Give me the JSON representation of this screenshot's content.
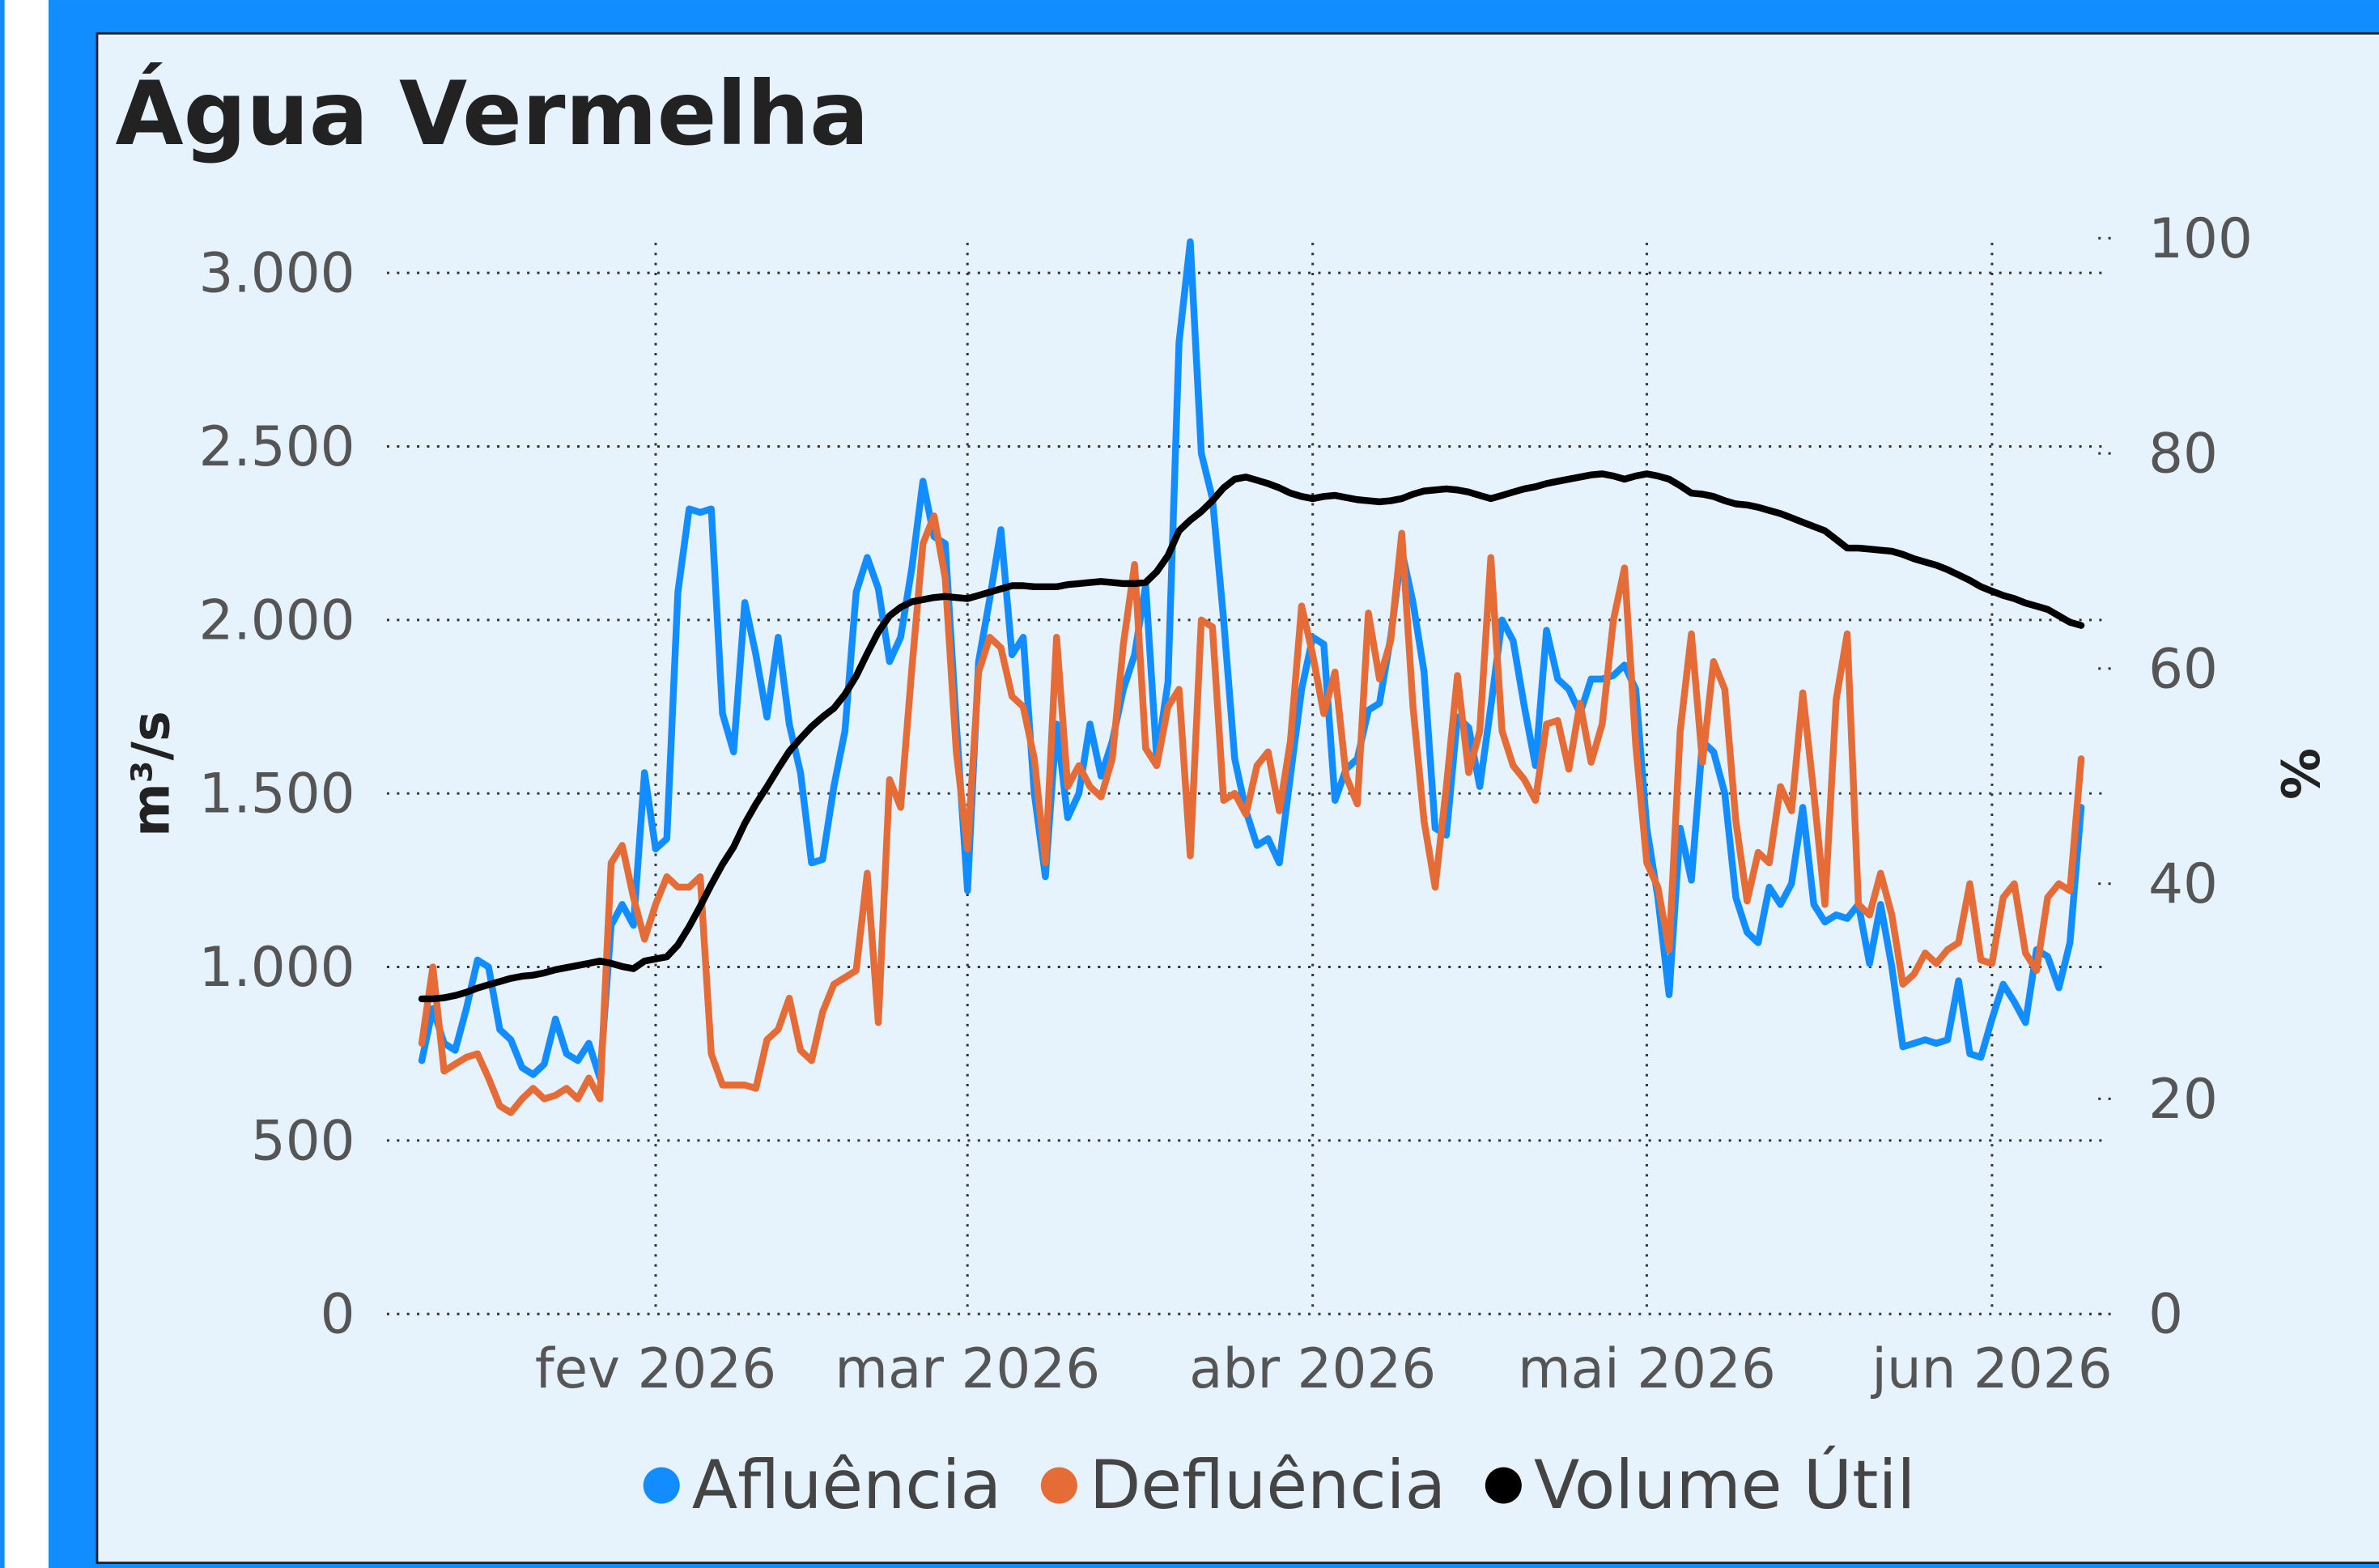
{
  "chart_data": {
    "type": "line",
    "title": "Água Vermelha",
    "y_label": "m³/s",
    "y2_label": "%",
    "categories": [
      null,
      null,
      null,
      null,
      null,
      null,
      null,
      null,
      null,
      null,
      null,
      null,
      null,
      null,
      null,
      null,
      null,
      null,
      null,
      null,
      null,
      "fev 2026",
      null,
      null,
      null,
      null,
      null,
      null,
      null,
      null,
      null,
      null,
      null,
      null,
      null,
      null,
      null,
      null,
      null,
      null,
      null,
      null,
      null,
      null,
      null,
      null,
      null,
      null,
      null,
      "mar 2026",
      null,
      null,
      null,
      null,
      null,
      null,
      null,
      null,
      null,
      null,
      null,
      null,
      null,
      null,
      null,
      null,
      null,
      null,
      null,
      null,
      null,
      null,
      null,
      null,
      null,
      null,
      null,
      null,
      null,
      null,
      "abr 2026",
      null,
      null,
      null,
      null,
      null,
      null,
      null,
      null,
      null,
      null,
      null,
      null,
      null,
      null,
      null,
      null,
      null,
      null,
      null,
      null,
      null,
      null,
      null,
      null,
      null,
      null,
      null,
      null,
      null,
      "mai 2026",
      null,
      null,
      null,
      null,
      null,
      null,
      null,
      null,
      null,
      null,
      null,
      null,
      null,
      null,
      null,
      null,
      null,
      null,
      null,
      null,
      null,
      null,
      null,
      null,
      null,
      null,
      null,
      null,
      null,
      null,
      "jun 2026",
      null,
      null,
      null,
      null,
      null,
      null,
      null,
      null
    ],
    "ylim": [
      0,
      3100
    ],
    "yticks": [
      0,
      500,
      {
        "value": 1000,
        "label": "1.000"
      },
      {
        "value": 1500,
        "label": "1.500"
      },
      {
        "value": 2000,
        "label": "2.000"
      },
      {
        "value": 2500,
        "label": "2.500"
      },
      {
        "value": 3000,
        "label": "3.000"
      }
    ],
    "y2lim": [
      0,
      100
    ],
    "y2ticks": [
      0,
      20,
      40,
      60,
      80,
      100
    ],
    "grid": true,
    "legend": "bottom",
    "series": [
      {
        "name": "Afluência",
        "color": "#118DFF",
        "values": [
          730,
          880,
          780,
          760,
          880,
          1020,
          1000,
          820,
          790,
          710,
          690,
          720,
          850,
          750,
          730,
          780,
          680,
          1120,
          1180,
          1120,
          1560,
          1340,
          1370,
          2080,
          2320,
          2310,
          2320,
          1730,
          1620,
          2050,
          1900,
          1720,
          1950,
          1700,
          1560,
          1300,
          1310,
          1520,
          1680,
          2080,
          2180,
          2090,
          1880,
          1950,
          2150,
          2400,
          2240,
          2220,
          1700,
          1220,
          1880,
          2060,
          2260,
          1900,
          1950,
          1500,
          1260,
          1700,
          1430,
          1500,
          1700,
          1550,
          1650,
          1800,
          1900,
          2100,
          1600,
          1820,
          2800,
          3090,
          2480,
          2350,
          2000,
          1600,
          1450,
          1350,
          1370,
          1300,
          1550,
          1800,
          1950,
          1930,
          1480,
          1570,
          1600,
          1740,
          1760,
          1950,
          2200,
          2050,
          1850,
          1400,
          1380,
          1720,
          1690,
          1520,
          1750,
          2000,
          1940,
          1750,
          1580,
          1970,
          1830,
          1800,
          1730,
          1830,
          1830,
          1840,
          1870,
          1800,
          1400,
          1200,
          920,
          1400,
          1250,
          1650,
          1620,
          1500,
          1200,
          1100,
          1070,
          1230,
          1180,
          1240,
          1460,
          1180,
          1130,
          1150,
          1140,
          1180,
          1010,
          1180,
          1000,
          770,
          780,
          790,
          780,
          790,
          960,
          750,
          740,
          850,
          950,
          900,
          840,
          1050,
          1030,
          940,
          1070,
          1460
        ]
      },
      {
        "name": "Defluência",
        "color": "#E66C37",
        "values": [
          780,
          1000,
          700,
          720,
          740,
          750,
          680,
          600,
          580,
          620,
          650,
          620,
          630,
          650,
          620,
          680,
          620,
          1300,
          1350,
          1200,
          1080,
          1180,
          1260,
          1230,
          1230,
          1260,
          750,
          660,
          660,
          660,
          650,
          790,
          820,
          910,
          760,
          730,
          870,
          950,
          970,
          990,
          1270,
          840,
          1540,
          1460,
          1860,
          2220,
          2300,
          2120,
          1620,
          1340,
          1850,
          1950,
          1920,
          1780,
          1750,
          1600,
          1300,
          1950,
          1520,
          1580,
          1520,
          1490,
          1600,
          1930,
          2160,
          1630,
          1580,
          1750,
          1800,
          1320,
          2000,
          1980,
          1480,
          1500,
          1440,
          1580,
          1620,
          1450,
          1650,
          2040,
          1900,
          1730,
          1850,
          1550,
          1470,
          2020,
          1830,
          1940,
          2250,
          1750,
          1420,
          1230,
          1520,
          1840,
          1560,
          1680,
          2180,
          1680,
          1580,
          1540,
          1480,
          1700,
          1710,
          1570,
          1760,
          1590,
          1700,
          2000,
          2150,
          1640,
          1300,
          1230,
          1050,
          1680,
          1960,
          1590,
          1880,
          1800,
          1420,
          1190,
          1330,
          1300,
          1520,
          1450,
          1790,
          1500,
          1180,
          1770,
          1960,
          1180,
          1150,
          1270,
          1150,
          950,
          980,
          1040,
          1010,
          1050,
          1070,
          1240,
          1020,
          1010,
          1200,
          1240,
          1040,
          990,
          1200,
          1240,
          1220,
          1600
        ]
      },
      {
        "name": "Volume Útil",
        "color": "#000000",
        "axis": "y2",
        "values": [
          29.3,
          29.3,
          29.4,
          29.6,
          29.9,
          30.3,
          30.6,
          30.9,
          31.2,
          31.4,
          31.5,
          31.7,
          32.0,
          32.2,
          32.4,
          32.6,
          32.8,
          32.6,
          32.3,
          32.1,
          32.8,
          33.0,
          33.2,
          34.3,
          36.0,
          37.9,
          39.9,
          41.8,
          43.4,
          45.6,
          47.4,
          49.0,
          50.7,
          52.3,
          53.5,
          54.6,
          55.5,
          56.3,
          57.6,
          59.3,
          61.4,
          63.4,
          64.9,
          65.7,
          66.2,
          66.4,
          66.6,
          66.7,
          66.6,
          66.5,
          66.8,
          67.1,
          67.4,
          67.7,
          67.7,
          67.6,
          67.6,
          67.6,
          67.8,
          67.9,
          68.0,
          68.1,
          68.0,
          67.9,
          67.9,
          68.0,
          69.0,
          70.5,
          72.8,
          73.8,
          74.6,
          75.6,
          76.8,
          77.6,
          77.8,
          77.5,
          77.2,
          76.8,
          76.3,
          76.0,
          75.8,
          76.0,
          76.1,
          75.9,
          75.7,
          75.6,
          75.5,
          75.6,
          75.8,
          76.2,
          76.5,
          76.6,
          76.7,
          76.6,
          76.4,
          76.1,
          75.8,
          76.1,
          76.4,
          76.7,
          76.9,
          77.2,
          77.4,
          77.6,
          77.8,
          78.0,
          78.1,
          77.9,
          77.6,
          77.9,
          78.1,
          77.9,
          77.6,
          77.0,
          76.3,
          76.2,
          76.0,
          75.6,
          75.3,
          75.2,
          75.0,
          74.7,
          74.4,
          74.0,
          73.6,
          73.2,
          72.8,
          72.0,
          71.2,
          71.2,
          71.1,
          71.0,
          70.9,
          70.6,
          70.2,
          69.9,
          69.6,
          69.2,
          68.7,
          68.2,
          67.6,
          67.2,
          66.8,
          66.5,
          66.1,
          65.8,
          65.5,
          64.9,
          64.3,
          64.0
        ]
      }
    ]
  }
}
